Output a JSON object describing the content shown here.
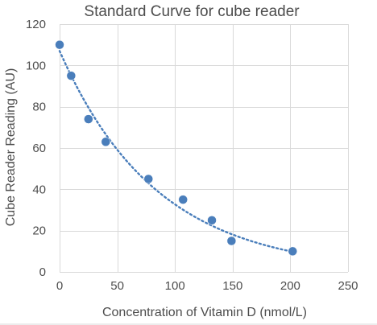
{
  "chart_data": {
    "type": "scatter",
    "title": "Standard Curve for cube reader",
    "xlabel": "Concentration of Vitamin D (nmol/L)",
    "ylabel": "Cube Reader Reading (AU)",
    "xlim": [
      0,
      250
    ],
    "ylim": [
      0,
      120
    ],
    "x_ticks": [
      "0",
      "50",
      "100",
      "150",
      "200",
      "250"
    ],
    "y_ticks": [
      "0",
      "20",
      "40",
      "60",
      "80",
      "100",
      "120"
    ],
    "grid": true,
    "legend": "none",
    "series": [
      {
        "x": [
          0,
          10,
          25,
          40,
          77,
          107,
          132,
          149,
          202
        ],
        "y": [
          110,
          95,
          74,
          63,
          45,
          35,
          25,
          15,
          10
        ]
      }
    ],
    "trendline": {
      "type": "exponential",
      "x_range": [
        0,
        200
      ],
      "y_start": 107,
      "y_end": 10
    },
    "colors": {
      "points": "#4a7ebb",
      "trendline": "#4a7ebb",
      "grid": "#d9d9d9",
      "text": "#4d4d4d"
    }
  }
}
